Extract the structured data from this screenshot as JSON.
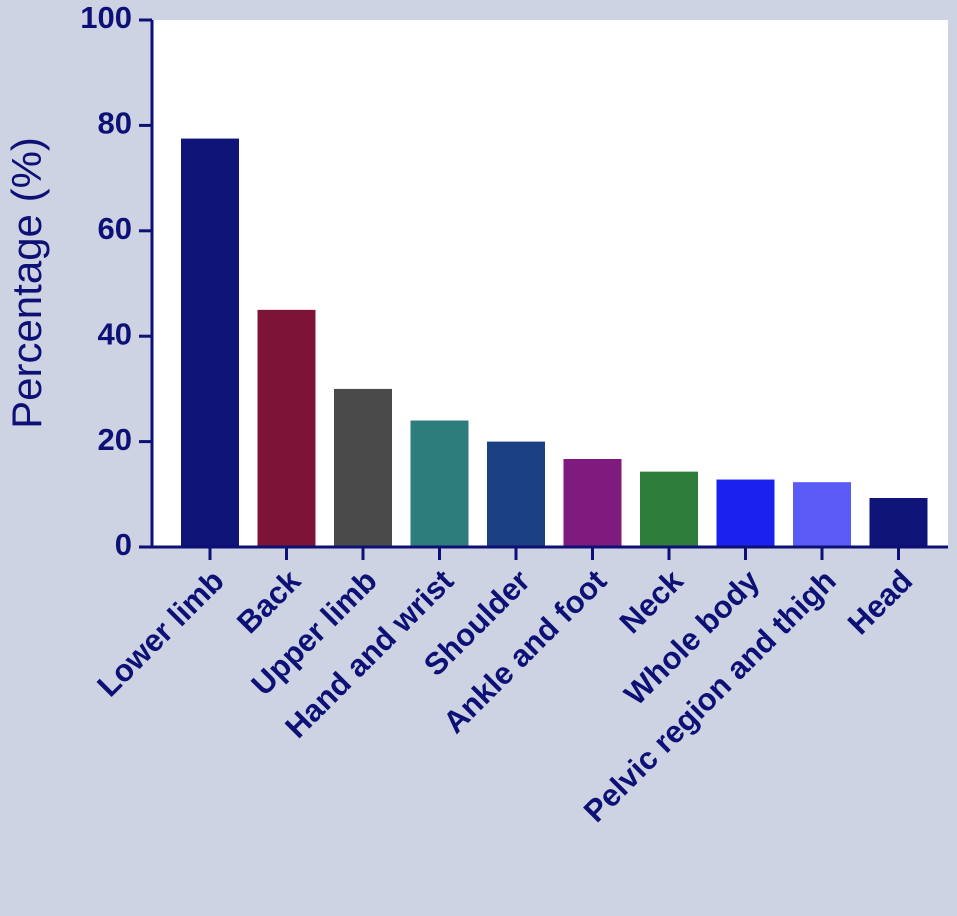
{
  "chart_data": {
    "type": "bar",
    "y_label": "Percentage (%)",
    "categories": [
      "Lower limb",
      "Back",
      "Upper limb",
      "Hand and wrist",
      "Shoulder",
      "Ankle and foot",
      "Neck",
      "Whole body",
      "Pelvic region and thigh",
      "Head"
    ],
    "values": [
      77.5,
      45,
      30,
      24,
      20,
      16.7,
      14.3,
      12.8,
      12.3,
      9.3
    ],
    "colors": [
      "#0f1478",
      "#7d1438",
      "#4a4a4a",
      "#2e7d7d",
      "#1a3f82",
      "#7f1b7f",
      "#2e7d3a",
      "#1b22f0",
      "#5b5bf5",
      "#0f1478"
    ],
    "ylim": [
      0,
      100
    ],
    "yticks": [
      0,
      20,
      40,
      60,
      80,
      100
    ]
  }
}
